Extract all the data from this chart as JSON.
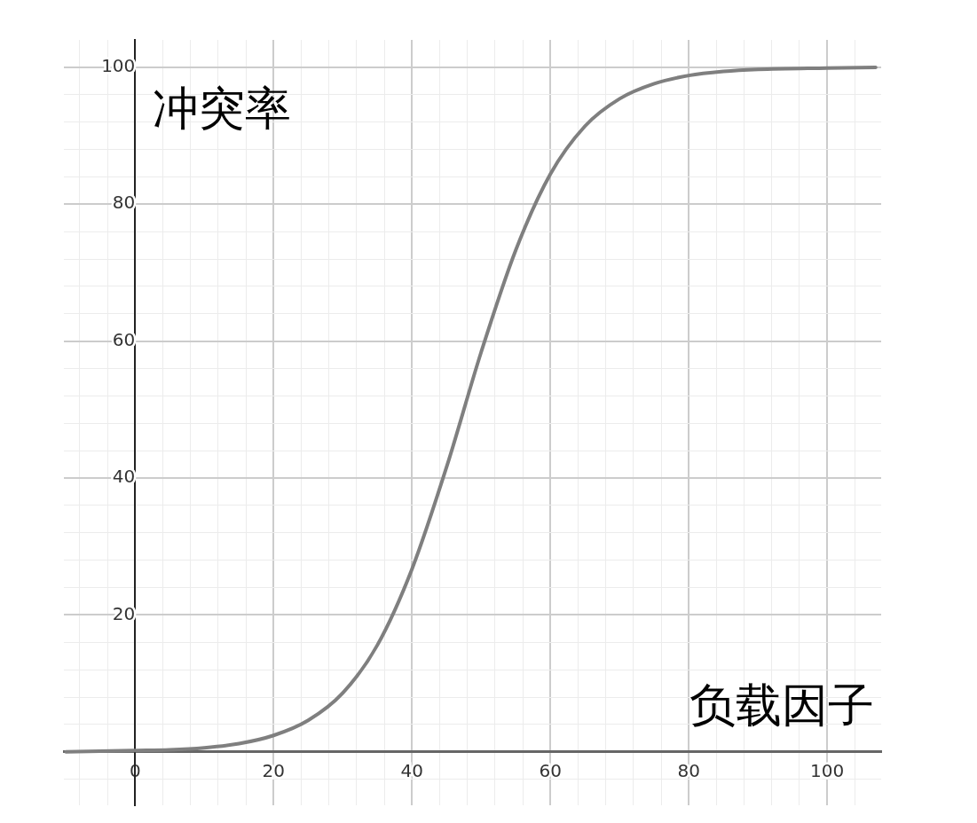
{
  "chart_data": {
    "type": "line",
    "xlabel": "负载因子",
    "ylabel": "冲突率",
    "x": [
      -10,
      0,
      5,
      10,
      15,
      20,
      25,
      30,
      35,
      40,
      45,
      50,
      55,
      60,
      65,
      70,
      75,
      80,
      85,
      90,
      100,
      107
    ],
    "series": [
      {
        "color": "#7f7f7f",
        "values": [
          0,
          0.2,
          0.3,
          0.6,
          1.2,
          2.4,
          4.6,
          8.6,
          15.6,
          26.7,
          41.6,
          58.4,
          73.3,
          84.4,
          91.4,
          95.4,
          97.6,
          98.8,
          99.4,
          99.7,
          99.9,
          100
        ]
      }
    ],
    "xlim": [
      -10.3,
      107.8
    ],
    "ylim": [
      -7.8,
      104
    ],
    "xticks": [
      {
        "value": -8,
        "label": null
      },
      {
        "value": -4,
        "label": null
      },
      0,
      {
        "value": 4,
        "label": null
      },
      {
        "value": 8,
        "label": null
      },
      {
        "value": 12,
        "label": null
      },
      {
        "value": 16,
        "label": null
      },
      20,
      {
        "value": 24,
        "label": null
      },
      {
        "value": 28,
        "label": null
      },
      {
        "value": 32,
        "label": null
      },
      {
        "value": 36,
        "label": null
      },
      40,
      {
        "value": 44,
        "label": null
      },
      {
        "value": 48,
        "label": null
      },
      {
        "value": 52,
        "label": null
      },
      {
        "value": 56,
        "label": null
      },
      60,
      {
        "value": 64,
        "label": null
      },
      {
        "value": 68,
        "label": null
      },
      {
        "value": 72,
        "label": null
      },
      {
        "value": 76,
        "label": null
      },
      80,
      {
        "value": 84,
        "label": null
      },
      {
        "value": 88,
        "label": null
      },
      {
        "value": 92,
        "label": null
      },
      {
        "value": 96,
        "label": null
      },
      100,
      {
        "value": 104,
        "label": null
      }
    ],
    "yticks": [
      {
        "value": -4,
        "label": null
      },
      {
        "value": 4,
        "label": null
      },
      {
        "value": 8,
        "label": null
      },
      {
        "value": 12,
        "label": null
      },
      {
        "value": 16,
        "label": null
      },
      20,
      {
        "value": 24,
        "label": null
      },
      {
        "value": 28,
        "label": null
      },
      {
        "value": 32,
        "label": null
      },
      {
        "value": 36,
        "label": null
      },
      40,
      {
        "value": 44,
        "label": null
      },
      {
        "value": 48,
        "label": null
      },
      {
        "value": 52,
        "label": null
      },
      {
        "value": 56,
        "label": null
      },
      60,
      {
        "value": 64,
        "label": null
      },
      {
        "value": 68,
        "label": null
      },
      {
        "value": 72,
        "label": null
      },
      {
        "value": 76,
        "label": null
      },
      80,
      {
        "value": 84,
        "label": null
      },
      {
        "value": 88,
        "label": null
      },
      {
        "value": 92,
        "label": null
      },
      {
        "value": 96,
        "label": null
      },
      100
    ],
    "grid": true,
    "legend": false,
    "marker": "none",
    "line_style": "solid"
  }
}
